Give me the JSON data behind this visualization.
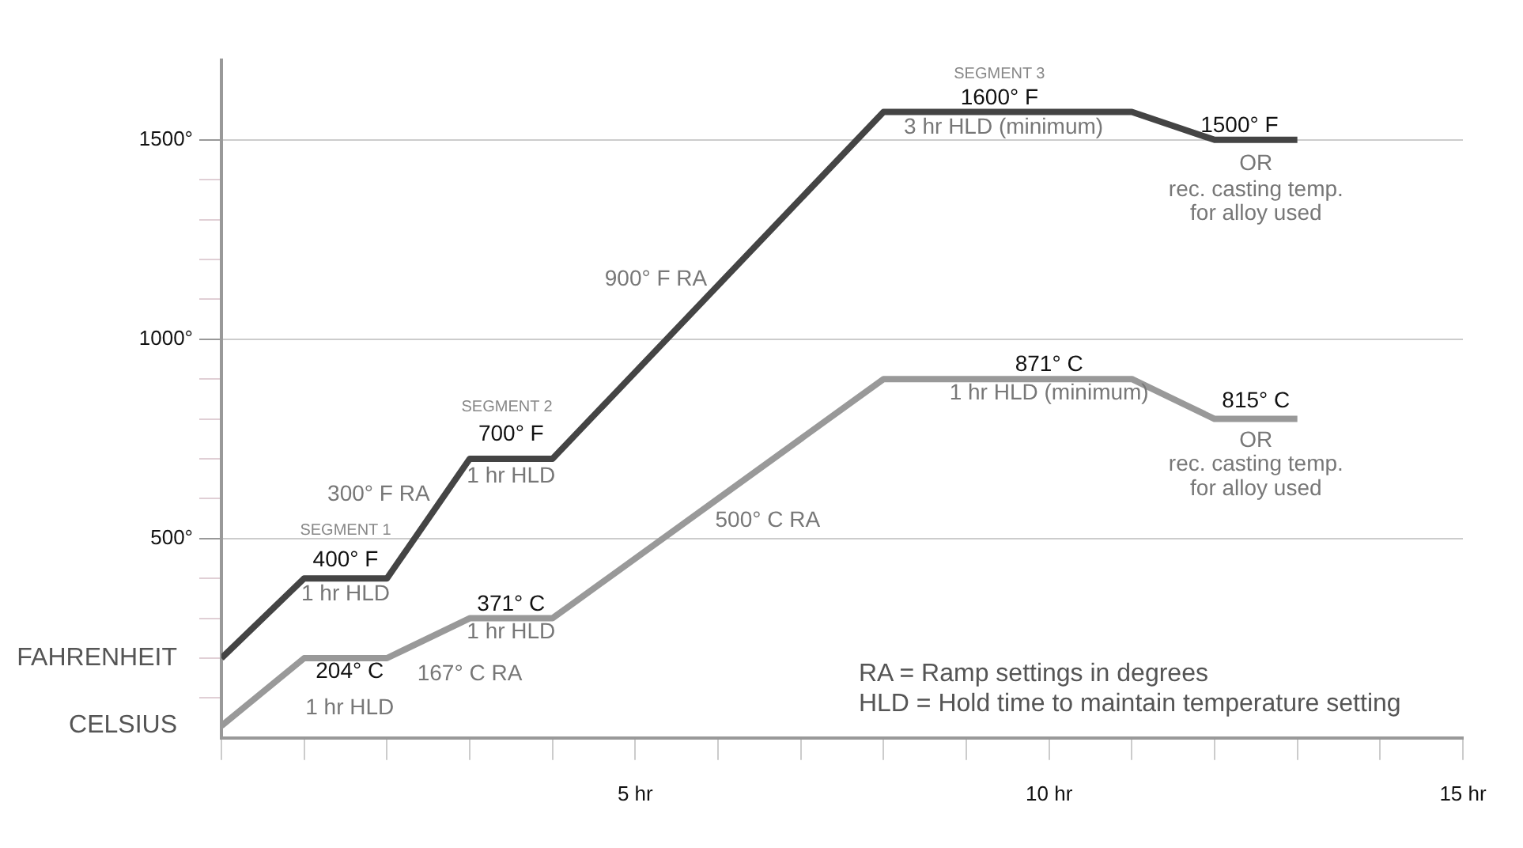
{
  "chart_data": {
    "type": "line",
    "x": [
      0,
      1,
      2,
      3,
      4,
      8,
      11,
      12,
      13
    ],
    "series": [
      {
        "name": "FAHRENHEIT",
        "color": "#444444",
        "values": [
          200,
          400,
          400,
          700,
          700,
          1570,
          1570,
          1500,
          1500
        ]
      },
      {
        "name": "CELSIUS",
        "color": "#999999",
        "values": [
          30,
          200,
          200,
          300,
          300,
          900,
          900,
          800,
          800
        ]
      }
    ],
    "xlim": [
      0,
      15
    ],
    "xticks": [
      {
        "value": 0,
        "label": null
      },
      {
        "value": 1,
        "label": null
      },
      {
        "value": 2,
        "label": null
      },
      {
        "value": 3,
        "label": null
      },
      {
        "value": 4,
        "label": null
      },
      {
        "value": 5,
        "label": "5 hr"
      },
      {
        "value": 6,
        "label": null
      },
      {
        "value": 7,
        "label": null
      },
      {
        "value": 8,
        "label": null
      },
      {
        "value": 9,
        "label": null
      },
      {
        "value": 10,
        "label": "10 hr"
      },
      {
        "value": 11,
        "label": null
      },
      {
        "value": 12,
        "label": null
      },
      {
        "value": 13,
        "label": null
      },
      {
        "value": 14,
        "label": null
      },
      {
        "value": 15,
        "label": "15 hr"
      }
    ],
    "ylim": [
      0,
      1700
    ],
    "yticks": [
      {
        "value": 100,
        "label": null
      },
      {
        "value": 200,
        "label": null
      },
      {
        "value": 300,
        "label": null
      },
      {
        "value": 400,
        "label": null
      },
      {
        "value": 500,
        "label": "500°"
      },
      {
        "value": 600,
        "label": null
      },
      {
        "value": 700,
        "label": null
      },
      {
        "value": 800,
        "label": null
      },
      {
        "value": 900,
        "label": null
      },
      {
        "value": 1000,
        "label": "1000°"
      },
      {
        "value": 1100,
        "label": null
      },
      {
        "value": 1200,
        "label": null
      },
      {
        "value": 1300,
        "label": null
      },
      {
        "value": 1400,
        "label": null
      },
      {
        "value": 1500,
        "label": "1500°"
      }
    ],
    "grid": "y",
    "legend": false,
    "marker": "none",
    "line_style": "solid",
    "annotations": [
      "SEGMENT 1",
      "400° F",
      "1 hr HLD",
      "300° F RA",
      "SEGMENT 2",
      "700° F",
      "1 hr HLD",
      "900° F RA",
      "SEGMENT 3",
      "1600° F",
      "3 hr HLD (minimum)",
      "1500° F",
      "OR",
      "rec. casting temp.",
      "for alloy used",
      "871° C",
      "1 hr HLD (minimum)",
      "815° C",
      "OR",
      "rec. casting temp.",
      "for alloy used",
      "500° C RA",
      "371° C",
      "1 hr HLD",
      "204° C",
      "1 hr HLD",
      "167° C RA",
      "RA = Ramp settings in degrees",
      "HLD = Hold time to maintain temperature setting"
    ]
  }
}
